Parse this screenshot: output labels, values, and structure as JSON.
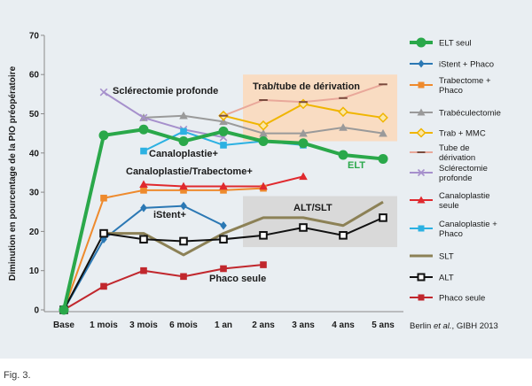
{
  "figure_caption": "Fig. 3.",
  "chart_data": {
    "type": "line",
    "ylabel": "Diminution en pourcentage de la PIO préopératoire",
    "xlabel": "",
    "ylim": [
      0,
      70
    ],
    "yticks": [
      0,
      10,
      20,
      30,
      40,
      50,
      60,
      70
    ],
    "categories": [
      "Base",
      "1 mois",
      "3 mois",
      "6 mois",
      "1 an",
      "2 ans",
      "3 ans",
      "4 ans",
      "5 ans"
    ],
    "grid": false,
    "legend_position": "right",
    "source": "Berlin et al., GIBH 2013",
    "source_parts": {
      "name": "Berlin ",
      "etal": "et al.",
      "rest": ", GIBH 2013"
    },
    "annotations": {
      "sclerectomie": "Sclérectomie profonde",
      "trab_tube": "Trab/tube de dérivation",
      "canaloplastie": "Canaloplastie+",
      "canalo_trab": "Canaloplastie/Trabectome+",
      "istent": "iStent+",
      "alt_slt": "ALT/SLT",
      "phaco": "Phaco seule",
      "elt": "ELT"
    },
    "shaded_regions": [
      {
        "label": "Trab/tube de dérivation",
        "x_from": "1 an",
        "x_to": "5 ans",
        "y_from": 43,
        "y_to": 60,
        "color": "#f9dcc2"
      },
      {
        "label": "ALT/SLT",
        "x_from": "1 an",
        "x_to": "5 ans",
        "y_from": 16,
        "y_to": 29,
        "color": "#d9d9d9"
      }
    ],
    "series": [
      {
        "name": "ELT seul",
        "color": "#2aa84a",
        "marker": "circle",
        "width": 4,
        "x": [
          "Base",
          "1 mois",
          "3 mois",
          "6 mois",
          "1 an",
          "2 ans",
          "3 ans",
          "4 ans",
          "5 ans"
        ],
        "values": [
          0,
          44.5,
          46,
          43,
          45.5,
          43,
          42.5,
          39.5,
          38.5
        ]
      },
      {
        "name": "iStent + Phaco",
        "color": "#2b78b4",
        "marker": "diamond",
        "width": 2,
        "x": [
          "Base",
          "1 mois",
          "3 mois",
          "6 mois",
          "1 an"
        ],
        "values": [
          0,
          18,
          26,
          26.5,
          21.5
        ]
      },
      {
        "name": "Trabectome + Phaco",
        "color": "#ee8a2d",
        "marker": "square",
        "width": 2,
        "x": [
          "Base",
          "1 mois",
          "3 mois",
          "6 mois",
          "1 an",
          "2 ans"
        ],
        "values": [
          0,
          28.5,
          30.5,
          30.5,
          30.5,
          31
        ]
      },
      {
        "name": "Trabéculectomie",
        "color": "#9a9a9a",
        "marker": "triangle",
        "width": 2,
        "x": [
          "3 mois",
          "6 mois",
          "1 an",
          "2 ans",
          "3 ans",
          "4 ans",
          "5 ans"
        ],
        "values": [
          49,
          49.5,
          48,
          45,
          45,
          46.5,
          45
        ]
      },
      {
        "name": "Trab + MMC",
        "color": "#f0b500",
        "marker": "diamond-open",
        "width": 2,
        "x": [
          "1 an",
          "2 ans",
          "3 ans",
          "4 ans",
          "5 ans"
        ],
        "values": [
          49.5,
          47,
          52.5,
          50.5,
          49
        ]
      },
      {
        "name": "Tube de dérivation",
        "color": "#e9a89a",
        "marker": "dash",
        "width": 2,
        "x": [
          "1 an",
          "2 ans",
          "3 ans",
          "4 ans",
          "5 ans"
        ],
        "values": [
          49.5,
          53.5,
          53,
          54,
          57.5
        ]
      },
      {
        "name": "Sclérectomie profonde",
        "color": "#a690cc",
        "marker": "x",
        "width": 2,
        "x": [
          "1 mois",
          "3 mois",
          "6 mois",
          "1 an"
        ],
        "values": [
          55.5,
          49,
          46,
          44
        ]
      },
      {
        "name": "Canaloplastie seule",
        "color": "#e0292e",
        "marker": "triangle",
        "width": 2,
        "x": [
          "3 mois",
          "6 mois",
          "1 an",
          "2 ans",
          "3 ans"
        ],
        "values": [
          32,
          31.5,
          31.5,
          31.5,
          34
        ]
      },
      {
        "name": "Canaloplastie + Phaco",
        "color": "#2cb1e2",
        "marker": "square",
        "width": 2,
        "x": [
          "3 mois",
          "6 mois",
          "1 an",
          "2 ans",
          "3 ans"
        ],
        "values": [
          40.5,
          45.5,
          42,
          43,
          42
        ]
      },
      {
        "name": "SLT",
        "color": "#8c8156",
        "marker": "none",
        "width": 3,
        "x": [
          "1 mois",
          "3 mois",
          "6 mois",
          "1 an",
          "2 ans",
          "3 ans",
          "4 ans",
          "5 ans"
        ],
        "values": [
          19.5,
          19.5,
          14,
          19.5,
          23.5,
          23.5,
          21.5,
          27.5
        ]
      },
      {
        "name": "ALT",
        "color": "#111111",
        "marker": "square-open",
        "width": 2,
        "x": [
          "Base",
          "1 mois",
          "3 mois",
          "6 mois",
          "1 an",
          "2 ans",
          "3 ans",
          "4 ans",
          "5 ans"
        ],
        "values": [
          0,
          19.5,
          18,
          17.5,
          18,
          19,
          21,
          19,
          23.5
        ]
      },
      {
        "name": "Phaco seule",
        "color": "#c1272d",
        "marker": "square",
        "width": 2,
        "x": [
          "Base",
          "1 mois",
          "3 mois",
          "6 mois",
          "1 an",
          "2 ans"
        ],
        "values": [
          0,
          6,
          10,
          8.5,
          10.5,
          11.5
        ]
      }
    ]
  }
}
